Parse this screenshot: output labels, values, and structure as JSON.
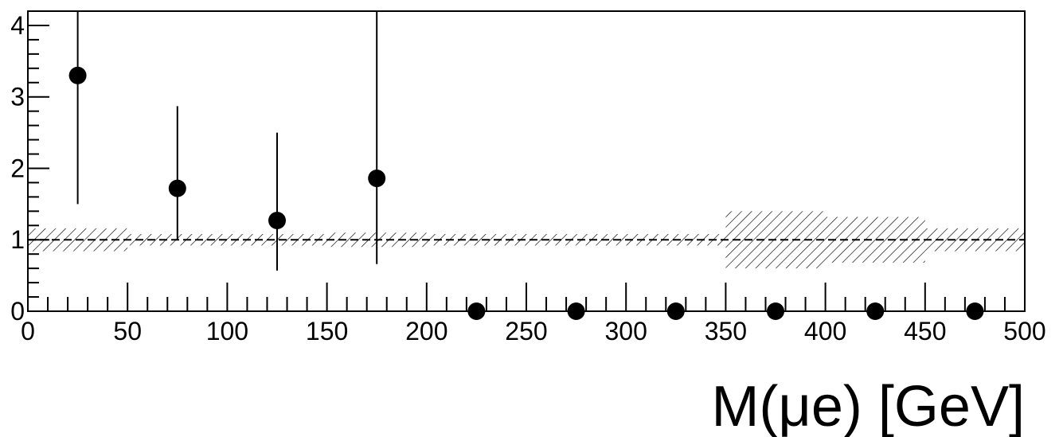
{
  "chart_data": {
    "type": "scatter",
    "title": "",
    "xlabel": "M(μe) [GeV]",
    "ylabel": "",
    "xlim": [
      0,
      500
    ],
    "ylim": [
      0,
      4.2
    ],
    "x_ticks": [
      0,
      50,
      100,
      150,
      200,
      250,
      300,
      350,
      400,
      450,
      500
    ],
    "x_tick_labels": [
      "0",
      "50",
      "100",
      "150",
      "200",
      "250",
      "300",
      "350",
      "400",
      "450",
      "500"
    ],
    "y_ticks": [
      0,
      1,
      2,
      3,
      4
    ],
    "y_tick_labels": [
      "0",
      "1",
      "2",
      "3",
      "4"
    ],
    "reference_line": 1,
    "grid": false,
    "series": [
      {
        "x": [
          25,
          75,
          125,
          175,
          225,
          275,
          325,
          375,
          425,
          475
        ],
        "values": [
          3.3,
          1.72,
          1.27,
          1.86,
          0,
          0,
          0,
          0,
          0,
          0
        ],
        "err_low": [
          1.8,
          0.72,
          0.7,
          1.2,
          0,
          0,
          0,
          0,
          0,
          0
        ],
        "err_high": [
          0.9,
          1.15,
          1.23,
          2.34,
          0,
          0,
          0,
          0,
          0,
          0
        ]
      }
    ],
    "uncertainty_band": [
      {
        "x_range": [
          0,
          50
        ],
        "low": 0.84,
        "high": 1.16
      },
      {
        "x_range": [
          50,
          100
        ],
        "low": 0.92,
        "high": 1.08
      },
      {
        "x_range": [
          100,
          150
        ],
        "low": 0.92,
        "high": 1.08
      },
      {
        "x_range": [
          150,
          200
        ],
        "low": 0.9,
        "high": 1.1
      },
      {
        "x_range": [
          200,
          250
        ],
        "low": 0.92,
        "high": 1.08
      },
      {
        "x_range": [
          250,
          300
        ],
        "low": 0.92,
        "high": 1.08
      },
      {
        "x_range": [
          300,
          350
        ],
        "low": 0.92,
        "high": 1.08
      },
      {
        "x_range": [
          350,
          400
        ],
        "low": 0.6,
        "high": 1.4
      },
      {
        "x_range": [
          400,
          450
        ],
        "low": 0.68,
        "high": 1.32
      },
      {
        "x_range": [
          450,
          500
        ],
        "low": 0.84,
        "high": 1.16
      }
    ]
  }
}
